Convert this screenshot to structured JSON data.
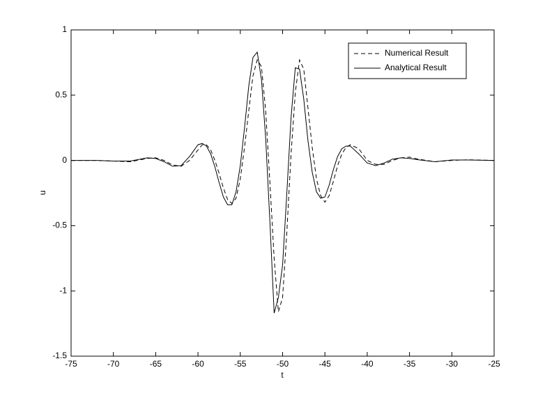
{
  "chart_data": {
    "type": "line",
    "x_label": "t",
    "y_label": "u",
    "x": [
      -75,
      -72,
      -70,
      -68,
      -66,
      -65,
      -64,
      -63,
      -62,
      -61,
      -60,
      -59.5,
      -59,
      -58.5,
      -58,
      -57.5,
      -57,
      -56.5,
      -56,
      -55.5,
      -55,
      -54.5,
      -54,
      -53.5,
      -53,
      -52.5,
      -52,
      -51.5,
      -51,
      -50.5,
      -50,
      -49.5,
      -49,
      -48.5,
      -48,
      -47.5,
      -47,
      -46.5,
      -46,
      -45.5,
      -45,
      -44.5,
      -44,
      -43.5,
      -43,
      -42.5,
      -42,
      -41,
      -40,
      -39,
      -38,
      -37,
      -36,
      -35,
      -34,
      -32,
      -30,
      -28,
      -25
    ],
    "series": [
      {
        "name": "Numerical Result",
        "color": "#000000",
        "dash": true,
        "values": [
          0,
          0,
          -0.005,
          -0.01,
          0.015,
          0.02,
          0,
          -0.035,
          -0.045,
          0,
          0.08,
          0.12,
          0.12,
          0.08,
          0,
          -0.1,
          -0.21,
          -0.3,
          -0.33,
          -0.29,
          -0.14,
          0.1,
          0.38,
          0.65,
          0.77,
          0.72,
          0.38,
          -0.17,
          -0.75,
          -1.16,
          -1.05,
          -0.55,
          0.05,
          0.52,
          0.77,
          0.7,
          0.4,
          0.1,
          -0.14,
          -0.27,
          -0.32,
          -0.27,
          -0.16,
          -0.04,
          0.05,
          0.1,
          0.12,
          0.09,
          0,
          -0.03,
          -0.03,
          0,
          0.02,
          0.025,
          0.01,
          -0.01,
          0,
          0.005,
          0
        ]
      },
      {
        "name": "Analytical Result",
        "color": "#000000",
        "dash": false,
        "values": [
          0,
          0,
          -0.005,
          -0.005,
          0.02,
          0.015,
          -0.01,
          -0.045,
          -0.04,
          0.03,
          0.12,
          0.13,
          0.11,
          0.05,
          -0.05,
          -0.17,
          -0.28,
          -0.34,
          -0.34,
          -0.24,
          -0.04,
          0.25,
          0.57,
          0.79,
          0.83,
          0.62,
          0.17,
          -0.47,
          -1.17,
          -1.05,
          -0.8,
          -0.25,
          0.33,
          0.71,
          0.7,
          0.47,
          0.15,
          -0.09,
          -0.24,
          -0.29,
          -0.28,
          -0.19,
          -0.07,
          0.03,
          0.09,
          0.11,
          0.11,
          0.05,
          -0.02,
          -0.04,
          -0.02,
          0.01,
          0.02,
          0.015,
          0.005,
          -0.01,
          0.003,
          0.003,
          0
        ]
      }
    ],
    "xlim": [
      -75,
      -25
    ],
    "xticks": [
      -75,
      -70,
      -65,
      -60,
      -55,
      -50,
      -45,
      -40,
      -35,
      -30,
      -25
    ],
    "ylim": [
      -1.5,
      1
    ],
    "yticks": [
      -1.5,
      -1,
      -0.5,
      0,
      0.5,
      1
    ],
    "grid": false,
    "legend": "upper right"
  }
}
